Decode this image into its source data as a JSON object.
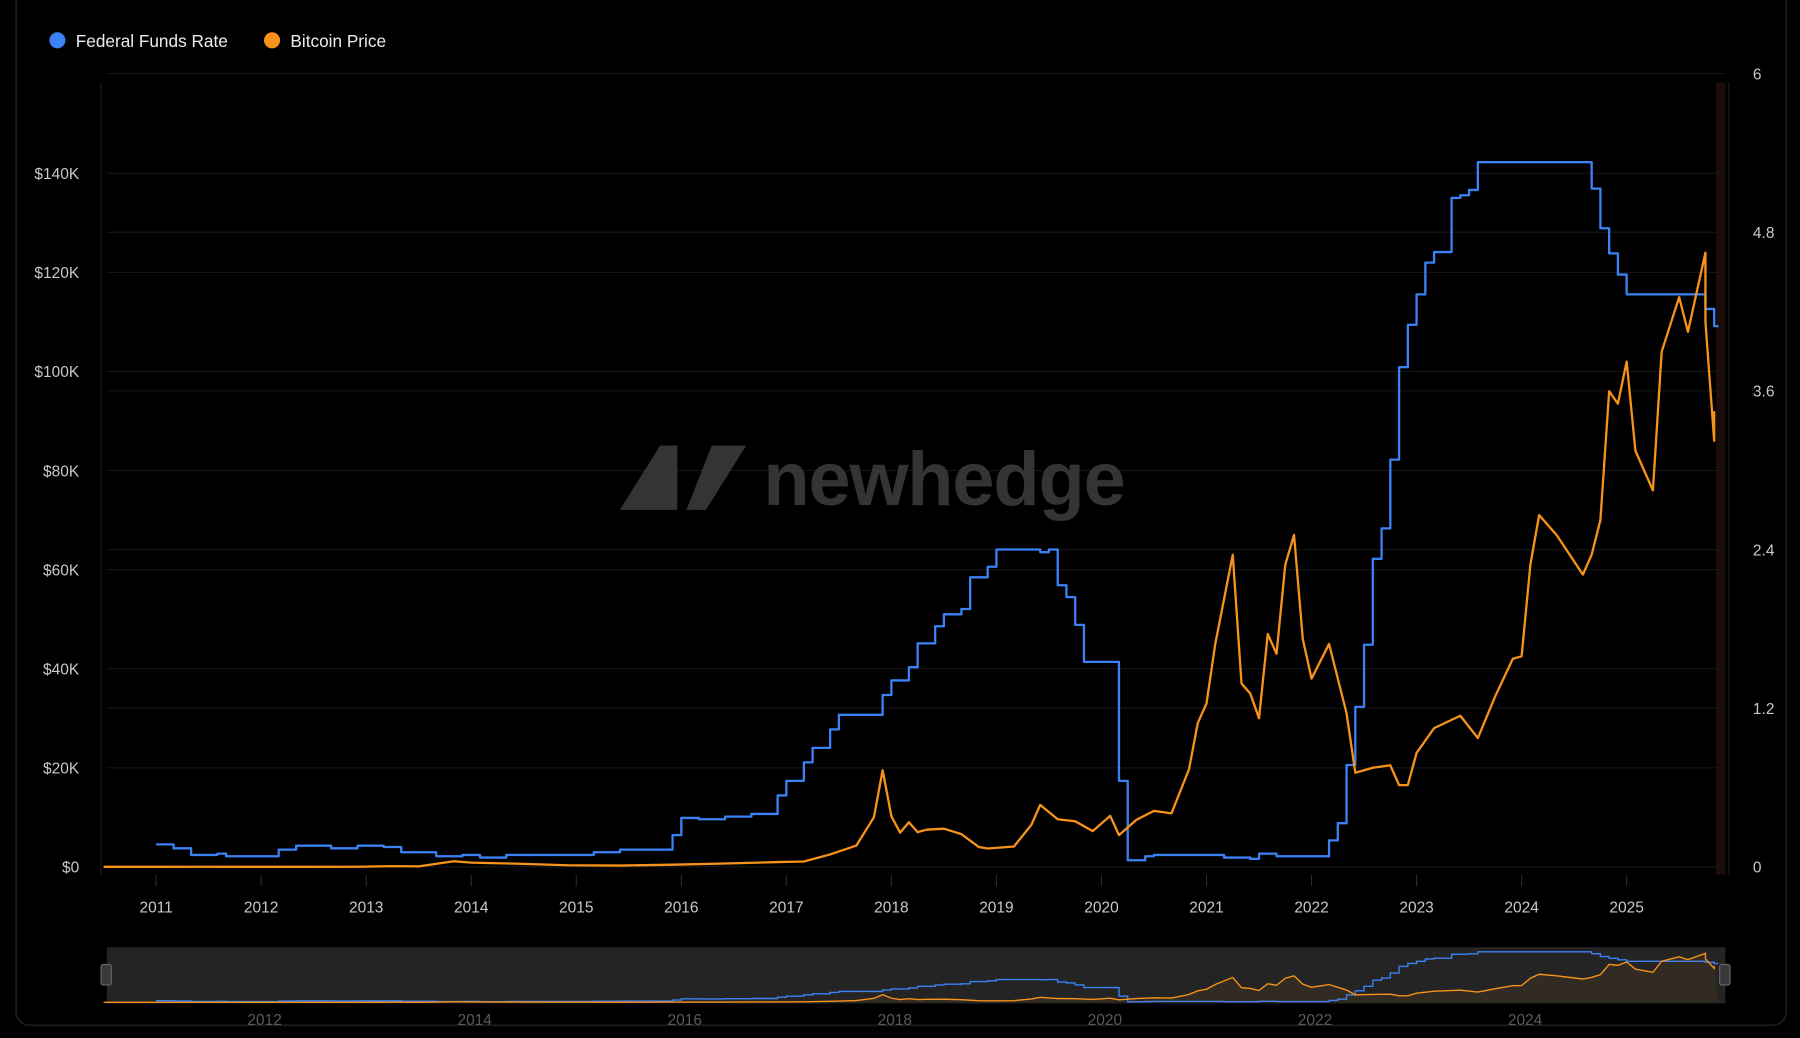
{
  "legend": [
    {
      "label": "Federal Funds Rate",
      "color": "#3b82f6"
    },
    {
      "label": "Bitcoin Price",
      "color": "#f7931a"
    }
  ],
  "watermark": "newhedge",
  "chart_data": {
    "type": "line",
    "title": "",
    "legend_position": "top-left",
    "grid": true,
    "x_range": [
      "2010-07",
      "2025-11"
    ],
    "x_ticks": [
      "2011",
      "2012",
      "2013",
      "2014",
      "2015",
      "2016",
      "2017",
      "2018",
      "2019",
      "2020",
      "2021",
      "2022",
      "2023",
      "2024",
      "2025"
    ],
    "y_left": {
      "range": [
        0,
        160000
      ],
      "ticks": [
        "$0",
        "$20K",
        "$40K",
        "$60K",
        "$80K",
        "$100K",
        "$120K",
        "$140K"
      ],
      "tick_values": [
        0,
        20000,
        40000,
        60000,
        80000,
        100000,
        120000,
        140000
      ]
    },
    "y_right": {
      "range": [
        0,
        6
      ],
      "ticks": [
        "0",
        "1.2",
        "2.4",
        "3.6",
        "4.8",
        "6"
      ],
      "tick_values": [
        0,
        1.2,
        2.4,
        3.6,
        4.8,
        6
      ]
    },
    "navigator_ticks": [
      "2012",
      "2014",
      "2016",
      "2018",
      "2020",
      "2022",
      "2024"
    ],
    "series": [
      {
        "name": "Federal Funds Rate",
        "axis": "right",
        "color": "#3b82f6",
        "step": true,
        "points": [
          [
            "2011-01",
            0.17
          ],
          [
            "2011-03",
            0.14
          ],
          [
            "2011-05",
            0.09
          ],
          [
            "2011-08",
            0.1
          ],
          [
            "2011-09",
            0.08
          ],
          [
            "2011-11",
            0.08
          ],
          [
            "2012-01",
            0.08
          ],
          [
            "2012-03",
            0.13
          ],
          [
            "2012-05",
            0.16
          ],
          [
            "2012-09",
            0.14
          ],
          [
            "2012-12",
            0.16
          ],
          [
            "2013-03",
            0.15
          ],
          [
            "2013-05",
            0.11
          ],
          [
            "2013-09",
            0.08
          ],
          [
            "2013-12",
            0.09
          ],
          [
            "2014-02",
            0.07
          ],
          [
            "2014-05",
            0.09
          ],
          [
            "2014-11",
            0.09
          ],
          [
            "2015-03",
            0.11
          ],
          [
            "2015-06",
            0.13
          ],
          [
            "2015-12",
            0.24
          ],
          [
            "2016-01",
            0.37
          ],
          [
            "2016-03",
            0.36
          ],
          [
            "2016-06",
            0.38
          ],
          [
            "2016-09",
            0.4
          ],
          [
            "2016-12",
            0.54
          ],
          [
            "2017-01",
            0.65
          ],
          [
            "2017-03",
            0.79
          ],
          [
            "2017-04",
            0.9
          ],
          [
            "2017-06",
            1.04
          ],
          [
            "2017-07",
            1.15
          ],
          [
            "2017-12",
            1.3
          ],
          [
            "2018-01",
            1.41
          ],
          [
            "2018-03",
            1.51
          ],
          [
            "2018-04",
            1.69
          ],
          [
            "2018-06",
            1.82
          ],
          [
            "2018-07",
            1.91
          ],
          [
            "2018-09",
            1.95
          ],
          [
            "2018-10",
            2.19
          ],
          [
            "2018-12",
            2.27
          ],
          [
            "2019-01",
            2.4
          ],
          [
            "2019-06",
            2.38
          ],
          [
            "2019-07",
            2.4
          ],
          [
            "2019-08",
            2.13
          ],
          [
            "2019-09",
            2.04
          ],
          [
            "2019-10",
            1.83
          ],
          [
            "2019-11",
            1.55
          ],
          [
            "2020-03",
            0.65
          ],
          [
            "2020-04",
            0.05
          ],
          [
            "2020-05",
            0.05
          ],
          [
            "2020-06",
            0.08
          ],
          [
            "2020-07",
            0.09
          ],
          [
            "2020-10",
            0.09
          ],
          [
            "2021-03",
            0.07
          ],
          [
            "2021-06",
            0.06
          ],
          [
            "2021-07",
            0.1
          ],
          [
            "2021-09",
            0.08
          ],
          [
            "2022-03",
            0.2
          ],
          [
            "2022-04",
            0.33
          ],
          [
            "2022-05",
            0.77
          ],
          [
            "2022-06",
            1.21
          ],
          [
            "2022-07",
            1.68
          ],
          [
            "2022-08",
            2.33
          ],
          [
            "2022-09",
            2.56
          ],
          [
            "2022-10",
            3.08
          ],
          [
            "2022-11",
            3.78
          ],
          [
            "2022-12",
            4.1
          ],
          [
            "2023-01",
            4.33
          ],
          [
            "2023-02",
            4.57
          ],
          [
            "2023-03",
            4.65
          ],
          [
            "2023-05",
            5.06
          ],
          [
            "2023-06",
            5.08
          ],
          [
            "2023-07",
            5.12
          ],
          [
            "2023-08",
            5.33
          ],
          [
            "2024-09",
            5.13
          ],
          [
            "2024-10",
            4.83
          ],
          [
            "2024-11",
            4.64
          ],
          [
            "2024-12",
            4.48
          ],
          [
            "2025-01",
            4.33
          ],
          [
            "2025-09",
            4.33
          ],
          [
            "2025-10",
            4.22
          ],
          [
            "2025-11",
            4.09
          ]
        ]
      },
      {
        "name": "Bitcoin Price",
        "axis": "left",
        "color": "#f7931a",
        "step": false,
        "points": [
          [
            "2010-07",
            0.07
          ],
          [
            "2011-01",
            0.3
          ],
          [
            "2011-06",
            17
          ],
          [
            "2011-12",
            4.7
          ],
          [
            "2012-06",
            6.7
          ],
          [
            "2012-12",
            13
          ],
          [
            "2013-04",
            140
          ],
          [
            "2013-07",
            100
          ],
          [
            "2013-11",
            1130
          ],
          [
            "2014-01",
            850
          ],
          [
            "2014-06",
            640
          ],
          [
            "2014-12",
            320
          ],
          [
            "2015-06",
            260
          ],
          [
            "2015-12",
            430
          ],
          [
            "2016-06",
            670
          ],
          [
            "2016-12",
            960
          ],
          [
            "2017-03",
            1070
          ],
          [
            "2017-06",
            2500
          ],
          [
            "2017-09",
            4300
          ],
          [
            "2017-11",
            10000
          ],
          [
            "2017-12",
            19500
          ],
          [
            "2018-01",
            10200
          ],
          [
            "2018-02",
            6900
          ],
          [
            "2018-03",
            9000
          ],
          [
            "2018-04",
            7000
          ],
          [
            "2018-05",
            7500
          ],
          [
            "2018-07",
            7700
          ],
          [
            "2018-09",
            6600
          ],
          [
            "2018-11",
            4000
          ],
          [
            "2018-12",
            3700
          ],
          [
            "2019-03",
            4100
          ],
          [
            "2019-05",
            8500
          ],
          [
            "2019-06",
            12500
          ],
          [
            "2019-08",
            9600
          ],
          [
            "2019-10",
            9200
          ],
          [
            "2019-12",
            7200
          ],
          [
            "2020-02",
            10300
          ],
          [
            "2020-03",
            6400
          ],
          [
            "2020-05",
            9500
          ],
          [
            "2020-07",
            11300
          ],
          [
            "2020-09",
            10800
          ],
          [
            "2020-11",
            19700
          ],
          [
            "2020-12",
            29000
          ],
          [
            "2021-01",
            33000
          ],
          [
            "2021-02",
            45000
          ],
          [
            "2021-04",
            63000
          ],
          [
            "2021-05",
            37000
          ],
          [
            "2021-06",
            35000
          ],
          [
            "2021-07",
            30000
          ],
          [
            "2021-08",
            47000
          ],
          [
            "2021-09",
            43000
          ],
          [
            "2021-10",
            61000
          ],
          [
            "2021-11",
            67000
          ],
          [
            "2021-12",
            46000
          ],
          [
            "2022-01",
            38000
          ],
          [
            "2022-03",
            45000
          ],
          [
            "2022-05",
            31000
          ],
          [
            "2022-06",
            19000
          ],
          [
            "2022-08",
            20000
          ],
          [
            "2022-10",
            20500
          ],
          [
            "2022-11",
            16500
          ],
          [
            "2022-12",
            16500
          ],
          [
            "2023-01",
            23000
          ],
          [
            "2023-03",
            28000
          ],
          [
            "2023-06",
            30500
          ],
          [
            "2023-08",
            26000
          ],
          [
            "2023-10",
            34500
          ],
          [
            "2023-12",
            42000
          ],
          [
            "2024-01",
            42500
          ],
          [
            "2024-02",
            61000
          ],
          [
            "2024-03",
            71000
          ],
          [
            "2024-05",
            67000
          ],
          [
            "2024-08",
            59000
          ],
          [
            "2024-09",
            63000
          ],
          [
            "2024-10",
            70000
          ],
          [
            "2024-11",
            96000
          ],
          [
            "2024-12",
            93500
          ],
          [
            "2025-01",
            102000
          ],
          [
            "2025-02",
            84000
          ],
          [
            "2025-04",
            76000
          ],
          [
            "2025-05",
            104000
          ],
          [
            "2025-07",
            115000
          ],
          [
            "2025-08",
            108000
          ],
          [
            "2025-10",
            124000
          ],
          [
            "2025-10",
            110000
          ],
          [
            "2025-11",
            86000
          ],
          [
            "2025-11",
            92000
          ]
        ]
      }
    ]
  }
}
